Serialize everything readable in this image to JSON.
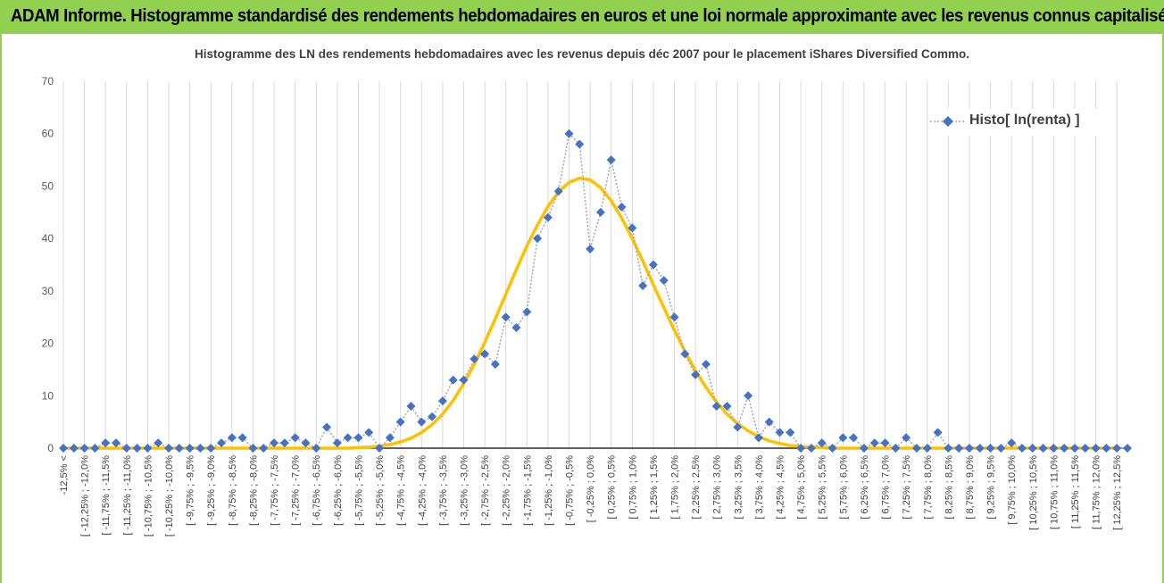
{
  "header": {
    "title": "ADAM Informe. Histogramme standardisé des rendements hebdomadaires en euros et une loi normale approximante avec les revenus connus capitalisés"
  },
  "colors": {
    "banner": "#92d050",
    "series_marker": "#4472c4",
    "series_line": "#a5a5a5",
    "normal_curve": "#ffc000",
    "grid": "#d9d9d9"
  },
  "chart_data": {
    "type": "line",
    "title": "Histogramme des LN des rendements hebdomadaires avec les revenus depuis déc 2007 pour le placement iShares Diversified Commo.",
    "ylim": [
      0,
      70
    ],
    "yticks": [
      0,
      10,
      20,
      30,
      40,
      50,
      60,
      70
    ],
    "grid": "vertical",
    "legend_position": "top-right",
    "tick_labels": [
      "-12,5% <",
      "[ -12,25% ; -12,0%",
      "[ -11,75% ; -11,5%",
      "[ -11,25% ; -11,0%",
      "[ -10,75% ; -10,5%",
      "[ -10,25% ; -10,0%",
      "[ -9,75% ; -9,5%",
      "[ -9,25% ; -9,0%",
      "[ -8,75% ; -8,5%",
      "[ -8,25% ; -8,0%",
      "[ -7,75% ; -7,5%",
      "[ -7,25% ; -7,0%",
      "[ -6,75% ; -6,5%",
      "[ -6,25% ; -6,0%",
      "[ -5,75% ; -5,5%",
      "[ -5,25% ; -5,0%",
      "[ -4,75% ; -4,5%",
      "[ -4,25% ; -4,0%",
      "[ -3,75% ; -3,5%",
      "[ -3,25% ; -3,0%",
      "[ -2,75% ; -2,5%",
      "[ -2,25% ; -2,0%",
      "[ -1,75% ; -1,5%",
      "[ -1,25% ; -1,0%",
      "[ -0,75% ; -0,5%",
      "[ -0,25% ; 0,0%",
      "[ 0,25% ; 0,5%",
      "[ 0,75% ; 1,0%",
      "[ 1,25% ; 1,5%",
      "[ 1,75% ; 2,0%",
      "[ 2,25% ; 2,5%",
      "[ 2,75% ; 3,0%",
      "[ 3,25% ; 3,5%",
      "[ 3,75% ; 4,0%",
      "[ 4,25% ; 4,5%",
      "[ 4,75% ; 5,0%",
      "[ 5,25% ; 5,5%",
      "[ 5,75% ; 6,0%",
      "[ 6,25% ; 6,5%",
      "[ 6,75% ; 7,0%",
      "[ 7,25% ; 7,5%",
      "[ 7,75% ; 8,0%",
      "[ 8,25% ; 8,5%",
      "[ 8,75% ; 9,0%",
      "[ 9,25% ; 9,5%",
      "[ 9,75% ; 10,0%",
      "[ 10,25% ; 10,5%",
      "[ 10,75% ; 11,0%",
      "[ 11,25% ; 11,5%",
      "[ 11,75% ; 12,0%",
      "[ 12,25% ; 12,5%"
    ],
    "series": [
      {
        "name": "Histo[ ln(renta) ]",
        "style": "dotted-line-diamond-markers",
        "values": [
          0,
          0,
          0,
          0,
          1,
          1,
          0,
          0,
          0,
          1,
          0,
          0,
          0,
          0,
          0,
          1,
          2,
          2,
          0,
          0,
          1,
          1,
          2,
          1,
          0,
          4,
          1,
          2,
          2,
          3,
          0,
          2,
          5,
          8,
          5,
          6,
          9,
          13,
          13,
          17,
          18,
          16,
          25,
          23,
          26,
          40,
          44,
          49,
          60,
          58,
          38,
          45,
          55,
          46,
          42,
          31,
          35,
          32,
          25,
          18,
          14,
          16,
          8,
          8,
          4,
          10,
          2,
          5,
          3,
          3,
          0,
          0,
          1,
          0,
          2,
          2,
          0,
          1,
          1,
          0,
          2,
          0,
          0,
          3,
          0,
          0,
          0,
          0,
          0,
          0,
          1,
          0,
          0,
          0,
          0,
          0,
          0,
          0,
          0,
          0,
          0,
          0
        ]
      },
      {
        "style": "smooth-line",
        "values": [
          0,
          0,
          0,
          0,
          0,
          0,
          0,
          0,
          0,
          0,
          0,
          0,
          0,
          0,
          0,
          0,
          0,
          0,
          0,
          0,
          0,
          0,
          0,
          0,
          0,
          0,
          0,
          0,
          0.1,
          0.2,
          0.4,
          0.7,
          1.2,
          1.9,
          3,
          4.5,
          6.5,
          9.1,
          12.3,
          16,
          20.2,
          24.7,
          29.4,
          34.1,
          38.6,
          42.6,
          46.1,
          48.9,
          50.7,
          51.5,
          51.2,
          49.7,
          47.2,
          43.9,
          40.0,
          35.7,
          31.2,
          26.8,
          22.5,
          18.5,
          14.8,
          11.6,
          8.8,
          6.5,
          4.7,
          3.3,
          2.2,
          1.4,
          0.9,
          0.5,
          0.3,
          0.2,
          0.1,
          0,
          0,
          0,
          0,
          0,
          0,
          0,
          0,
          0,
          0,
          0,
          0,
          0,
          0,
          0,
          0,
          0,
          0,
          0,
          0,
          0,
          0,
          0,
          0,
          0,
          0,
          0,
          0
        ]
      }
    ]
  }
}
